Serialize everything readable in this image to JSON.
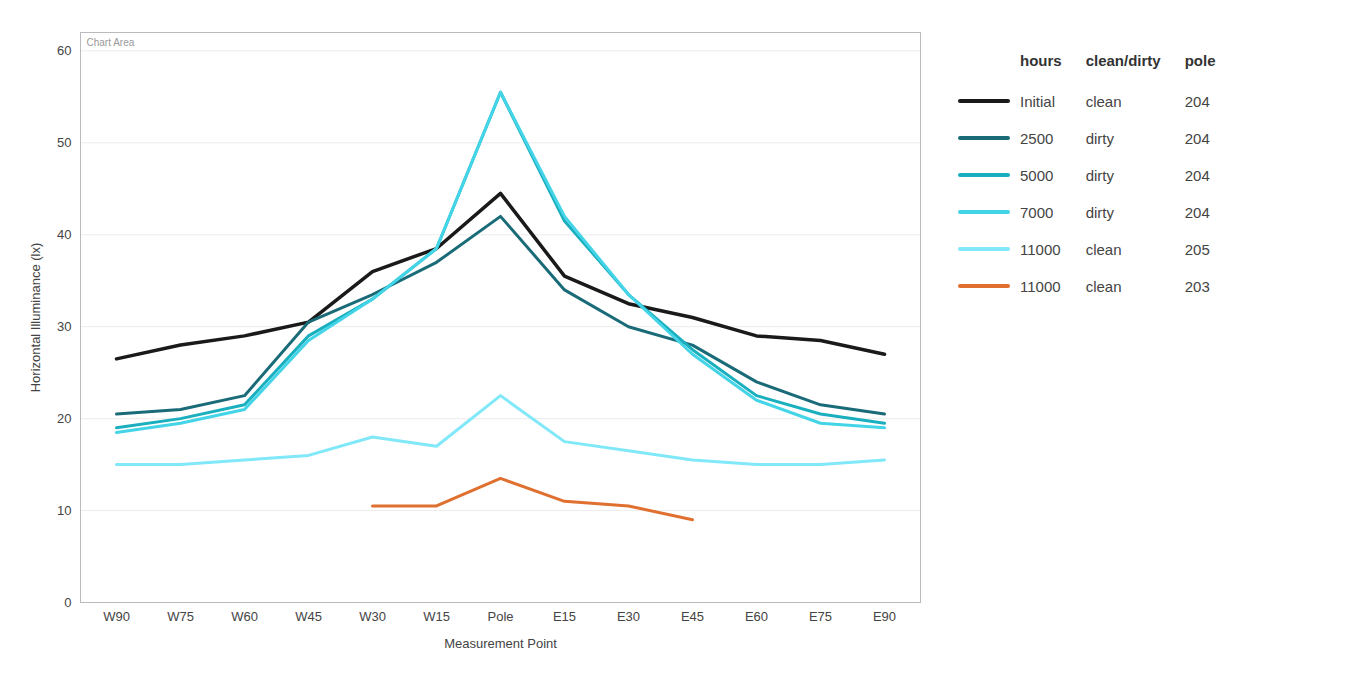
{
  "chart_data": {
    "type": "line",
    "xlabel": "Measurement Point",
    "ylabel": "Horizontal Illuminance (lx)",
    "categories": [
      "W90",
      "W75",
      "W60",
      "W45",
      "W30",
      "W15",
      "Pole",
      "E15",
      "E30",
      "E45",
      "E60",
      "E75",
      "E90"
    ],
    "legend_columns": [
      "hours",
      "clean/dirty",
      "pole"
    ],
    "series": [
      {
        "name": "Initial",
        "clean_dirty": "clean",
        "pole": "204",
        "color": "#1a1a1a",
        "values": [
          26.5,
          28.0,
          29.0,
          30.5,
          36.0,
          38.5,
          44.5,
          35.5,
          32.5,
          31.0,
          29.0,
          28.5,
          27.0
        ]
      },
      {
        "name": "2500",
        "clean_dirty": "dirty",
        "pole": "204",
        "color": "#1a6b78",
        "values": [
          20.5,
          21.0,
          22.5,
          30.5,
          33.5,
          37.0,
          42.0,
          34.0,
          30.0,
          28.0,
          24.0,
          21.5,
          20.5
        ]
      },
      {
        "name": "5000",
        "clean_dirty": "dirty",
        "pole": "204",
        "color": "#1aafbe",
        "values": [
          19.0,
          20.0,
          21.5,
          29.0,
          33.0,
          38.5,
          55.5,
          41.5,
          33.5,
          27.5,
          22.5,
          20.5,
          19.5
        ]
      },
      {
        "name": "7000",
        "clean_dirty": "dirty",
        "pole": "204",
        "color": "#44d4e8",
        "values": [
          18.5,
          19.5,
          21.0,
          28.5,
          33.0,
          38.5,
          55.5,
          42.0,
          33.5,
          27.0,
          22.0,
          19.5,
          19.0
        ]
      },
      {
        "name": "11000",
        "clean_dirty": "clean",
        "pole": "205",
        "color": "#80e8f8",
        "values": [
          15.0,
          15.0,
          15.5,
          16.0,
          18.0,
          17.0,
          22.5,
          17.5,
          16.5,
          15.5,
          15.0,
          15.0,
          15.5
        ]
      },
      {
        "name": "11000",
        "clean_dirty": "clean",
        "pole": "203",
        "color": "#e07030",
        "values": [
          null,
          null,
          null,
          null,
          10.5,
          10.5,
          13.5,
          11.0,
          10.5,
          9.0,
          null,
          null,
          null
        ]
      }
    ],
    "ylim": [
      0,
      62
    ],
    "yticks": [
      0,
      10,
      20,
      30,
      40,
      50,
      60
    ],
    "grid": true,
    "annotations": [
      "Chart Area"
    ]
  }
}
